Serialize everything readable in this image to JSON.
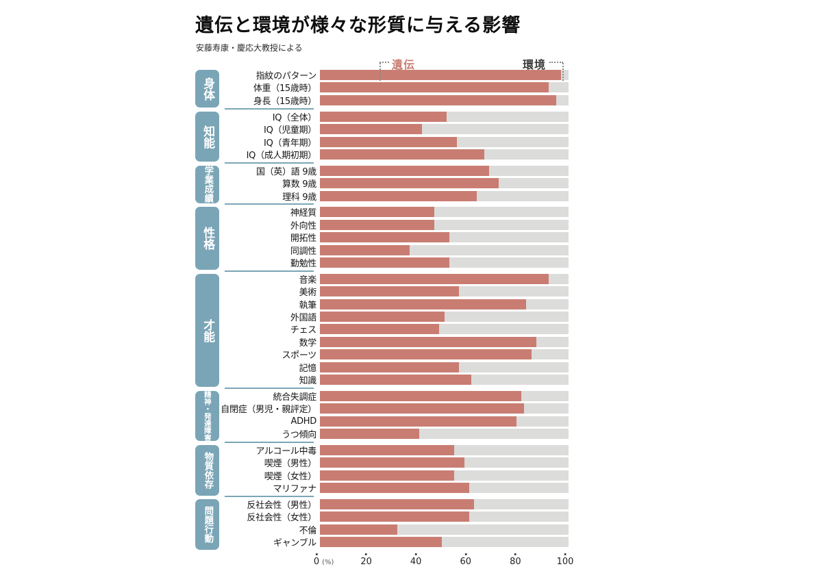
{
  "header": {
    "title": "遺伝と環境が様々な形質に与える影響",
    "source": "安藤寿康・慶応大教授による"
  },
  "legend": {
    "heredity": "遺伝",
    "environment": "環境"
  },
  "colors": {
    "heredity_bar": "#C97D72",
    "environment_bar": "#DCDCDB",
    "category_box": "#7AA5B6",
    "separator_line": "#7AA5B6",
    "heredity_label_text": "#C97D72"
  },
  "axis": {
    "ticks": [
      0,
      20,
      40,
      60,
      80,
      100
    ],
    "unit": "(%)"
  },
  "chart_data": {
    "type": "bar",
    "orientation": "horizontal",
    "stacked": true,
    "title": "遺伝と環境が様々な形質に与える影響",
    "subtitle": "安藤寿康・慶応大教授による",
    "series_names": [
      "遺伝",
      "環境"
    ],
    "unit": "%",
    "xlim": [
      0,
      100
    ],
    "environment_is_remainder": true,
    "groups": [
      {
        "category": "身体",
        "items": [
          {
            "label": "指紋のパターン",
            "value": 97
          },
          {
            "label": "体重（15歳時）",
            "value": 92
          },
          {
            "label": "身長（15歳時）",
            "value": 95
          }
        ]
      },
      {
        "category": "知能",
        "items": [
          {
            "label": "IQ（全体）",
            "value": 51
          },
          {
            "label": "IQ（児童期）",
            "value": 41
          },
          {
            "label": "IQ（青年期）",
            "value": 55
          },
          {
            "label": "IQ（成人期初期）",
            "value": 66
          }
        ]
      },
      {
        "category": "学業成績",
        "items": [
          {
            "label": "国（英）語 9歳",
            "value": 68
          },
          {
            "label": "算数 9歳",
            "value": 72
          },
          {
            "label": "理科 9歳",
            "value": 63
          }
        ]
      },
      {
        "category": "性格",
        "items": [
          {
            "label": "神経質",
            "value": 46
          },
          {
            "label": "外向性",
            "value": 46
          },
          {
            "label": "開拓性",
            "value": 52
          },
          {
            "label": "同調性",
            "value": 36
          },
          {
            "label": "勤勉性",
            "value": 52
          }
        ]
      },
      {
        "category": "才能",
        "items": [
          {
            "label": "音楽",
            "value": 92
          },
          {
            "label": "美術",
            "value": 56
          },
          {
            "label": "執筆",
            "value": 83
          },
          {
            "label": "外国語",
            "value": 50
          },
          {
            "label": "チェス",
            "value": 48
          },
          {
            "label": "数学",
            "value": 87
          },
          {
            "label": "スポーツ",
            "value": 85
          },
          {
            "label": "記憶",
            "value": 56
          },
          {
            "label": "知識",
            "value": 61
          }
        ]
      },
      {
        "category": "精神・発達障害",
        "items": [
          {
            "label": "統合失調症",
            "value": 81
          },
          {
            "label": "自閉症（男児・親評定）",
            "value": 82
          },
          {
            "label": "ADHD",
            "value": 79
          },
          {
            "label": "うつ傾向",
            "value": 40
          }
        ]
      },
      {
        "category": "物質依存",
        "items": [
          {
            "label": "アルコール中毒",
            "value": 54
          },
          {
            "label": "喫煙（男性）",
            "value": 58
          },
          {
            "label": "喫煙（女性）",
            "value": 54
          },
          {
            "label": "マリファナ",
            "value": 60
          }
        ]
      },
      {
        "category": "問題行動",
        "items": [
          {
            "label": "反社会性（男性）",
            "value": 62
          },
          {
            "label": "反社会性（女性）",
            "value": 60
          },
          {
            "label": "不倫",
            "value": 31
          },
          {
            "label": "ギャンブル",
            "value": 49
          }
        ]
      }
    ]
  }
}
